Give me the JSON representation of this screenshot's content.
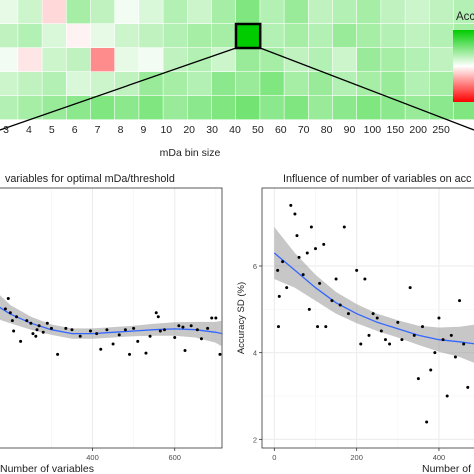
{
  "chart_data": [
    {
      "type": "heatmap",
      "xlabel": "mDa bin size",
      "categories": [
        "3",
        "4",
        "5",
        "6",
        "7",
        "8",
        "9",
        "10",
        "20",
        "30",
        "40",
        "50",
        "60",
        "70",
        "80",
        "90",
        "100",
        "150",
        "200",
        "250"
      ],
      "legend_title": "Acc",
      "highlighted_category": "40",
      "colors": {
        "high": "#00cc00",
        "mid": "#ffffff",
        "low": "#ff0000"
      },
      "values": [
        [
          0.1,
          0.2,
          -0.15,
          0.35,
          0.25,
          0.05,
          0.15,
          0.3,
          0.2,
          0.35,
          0.5,
          0.3,
          0.4,
          0.25,
          0.3,
          0.35,
          0.25,
          0.2,
          0.25,
          0.3
        ],
        [
          0.25,
          0.3,
          0.15,
          -0.05,
          0.1,
          0.2,
          0.25,
          0.3,
          0.35,
          0.35,
          1.0,
          0.3,
          0.35,
          0.3,
          0.4,
          0.35,
          0.3,
          0.25,
          0.3,
          0.35
        ],
        [
          0.05,
          -0.1,
          0.2,
          0.25,
          -0.45,
          0.1,
          0.05,
          0.25,
          0.3,
          0.2,
          0.4,
          0.35,
          0.25,
          0.3,
          0.2,
          0.4,
          0.35,
          0.3,
          0.25,
          0.35
        ],
        [
          0.2,
          0.25,
          0.3,
          0.15,
          0.2,
          0.25,
          0.4,
          0.35,
          0.3,
          0.45,
          0.4,
          0.5,
          0.35,
          0.4,
          0.3,
          0.35,
          0.4,
          0.3,
          0.35,
          0.4
        ],
        [
          0.3,
          0.35,
          0.4,
          0.45,
          0.5,
          0.45,
          0.5,
          0.4,
          0.45,
          0.5,
          0.55,
          0.45,
          0.5,
          0.4,
          0.45,
          0.5,
          0.45,
          0.4,
          0.45,
          0.5
        ]
      ]
    },
    {
      "type": "scatter",
      "title": "variables for optimal mDa/threshold",
      "xlabel": "Number of variables",
      "ylabel": "",
      "xticks": [
        400,
        600
      ],
      "xlim": [
        170,
        715
      ],
      "ylim": [
        0.0,
        1.0
      ],
      "grid": true,
      "points": [
        {
          "x": 188,
          "y": 0.535
        },
        {
          "x": 195,
          "y": 0.575
        },
        {
          "x": 200,
          "y": 0.52
        },
        {
          "x": 205,
          "y": 0.49
        },
        {
          "x": 208,
          "y": 0.45
        },
        {
          "x": 215,
          "y": 0.505
        },
        {
          "x": 225,
          "y": 0.41
        },
        {
          "x": 240,
          "y": 0.49
        },
        {
          "x": 250,
          "y": 0.48
        },
        {
          "x": 255,
          "y": 0.44
        },
        {
          "x": 262,
          "y": 0.43
        },
        {
          "x": 265,
          "y": 0.455
        },
        {
          "x": 270,
          "y": 0.47
        },
        {
          "x": 280,
          "y": 0.445
        },
        {
          "x": 290,
          "y": 0.48
        },
        {
          "x": 300,
          "y": 0.46
        },
        {
          "x": 315,
          "y": 0.36
        },
        {
          "x": 335,
          "y": 0.46
        },
        {
          "x": 350,
          "y": 0.455
        },
        {
          "x": 370,
          "y": 0.43
        },
        {
          "x": 395,
          "y": 0.45
        },
        {
          "x": 410,
          "y": 0.44
        },
        {
          "x": 420,
          "y": 0.38
        },
        {
          "x": 435,
          "y": 0.455
        },
        {
          "x": 450,
          "y": 0.4
        },
        {
          "x": 465,
          "y": 0.435
        },
        {
          "x": 480,
          "y": 0.455
        },
        {
          "x": 490,
          "y": 0.36
        },
        {
          "x": 500,
          "y": 0.46
        },
        {
          "x": 510,
          "y": 0.41
        },
        {
          "x": 530,
          "y": 0.365
        },
        {
          "x": 540,
          "y": 0.43
        },
        {
          "x": 555,
          "y": 0.52
        },
        {
          "x": 560,
          "y": 0.505
        },
        {
          "x": 565,
          "y": 0.45
        },
        {
          "x": 575,
          "y": 0.455
        },
        {
          "x": 600,
          "y": 0.425
        },
        {
          "x": 610,
          "y": 0.47
        },
        {
          "x": 620,
          "y": 0.465
        },
        {
          "x": 625,
          "y": 0.375
        },
        {
          "x": 640,
          "y": 0.47
        },
        {
          "x": 655,
          "y": 0.455
        },
        {
          "x": 665,
          "y": 0.42
        },
        {
          "x": 680,
          "y": 0.46
        },
        {
          "x": 690,
          "y": 0.5
        },
        {
          "x": 700,
          "y": 0.5
        },
        {
          "x": 710,
          "y": 0.36
        }
      ],
      "smooth": {
        "x": [
          170,
          200,
          250,
          300,
          350,
          400,
          450,
          500,
          550,
          600,
          650,
          700,
          715
        ],
        "y": [
          0.545,
          0.515,
          0.48,
          0.455,
          0.44,
          0.44,
          0.445,
          0.45,
          0.455,
          0.458,
          0.455,
          0.445,
          0.44
        ],
        "lower": [
          0.495,
          0.48,
          0.455,
          0.435,
          0.42,
          0.42,
          0.425,
          0.43,
          0.432,
          0.432,
          0.425,
          0.405,
          0.39
        ],
        "upper": [
          0.595,
          0.55,
          0.505,
          0.475,
          0.46,
          0.46,
          0.465,
          0.47,
          0.478,
          0.484,
          0.485,
          0.485,
          0.49
        ]
      }
    },
    {
      "type": "scatter",
      "title": "Influence of number of variables on acc",
      "xlabel": "Number of",
      "ylabel": "Accuracy SD (%)",
      "xticks": [
        0,
        200,
        400
      ],
      "yticks": [
        2,
        4,
        6
      ],
      "xlim": [
        -30,
        490
      ],
      "ylim": [
        1.8,
        7.8
      ],
      "grid": true,
      "points": [
        {
          "x": 8,
          "y": 5.9
        },
        {
          "x": 10,
          "y": 4.6
        },
        {
          "x": 12,
          "y": 5.3
        },
        {
          "x": 20,
          "y": 6.1
        },
        {
          "x": 30,
          "y": 5.5
        },
        {
          "x": 40,
          "y": 7.4
        },
        {
          "x": 50,
          "y": 7.2
        },
        {
          "x": 55,
          "y": 6.7
        },
        {
          "x": 60,
          "y": 6.2
        },
        {
          "x": 70,
          "y": 5.8
        },
        {
          "x": 80,
          "y": 6.3
        },
        {
          "x": 85,
          "y": 5.0
        },
        {
          "x": 90,
          "y": 6.9
        },
        {
          "x": 100,
          "y": 6.4
        },
        {
          "x": 105,
          "y": 4.6
        },
        {
          "x": 110,
          "y": 5.6
        },
        {
          "x": 120,
          "y": 6.5
        },
        {
          "x": 125,
          "y": 4.6
        },
        {
          "x": 140,
          "y": 5.2
        },
        {
          "x": 150,
          "y": 5.7
        },
        {
          "x": 160,
          "y": 5.1
        },
        {
          "x": 170,
          "y": 6.9
        },
        {
          "x": 180,
          "y": 4.9
        },
        {
          "x": 200,
          "y": 5.9
        },
        {
          "x": 210,
          "y": 4.2
        },
        {
          "x": 220,
          "y": 5.7
        },
        {
          "x": 230,
          "y": 4.4
        },
        {
          "x": 240,
          "y": 4.9
        },
        {
          "x": 250,
          "y": 4.8
        },
        {
          "x": 260,
          "y": 4.5
        },
        {
          "x": 270,
          "y": 4.3
        },
        {
          "x": 280,
          "y": 4.2
        },
        {
          "x": 300,
          "y": 4.7
        },
        {
          "x": 310,
          "y": 4.3
        },
        {
          "x": 330,
          "y": 5.5
        },
        {
          "x": 340,
          "y": 4.4
        },
        {
          "x": 350,
          "y": 3.4
        },
        {
          "x": 360,
          "y": 4.6
        },
        {
          "x": 370,
          "y": 2.4
        },
        {
          "x": 380,
          "y": 3.6
        },
        {
          "x": 390,
          "y": 4.0
        },
        {
          "x": 400,
          "y": 4.8
        },
        {
          "x": 410,
          "y": 4.3
        },
        {
          "x": 420,
          "y": 3.0
        },
        {
          "x": 430,
          "y": 4.4
        },
        {
          "x": 440,
          "y": 3.9
        },
        {
          "x": 450,
          "y": 5.2
        },
        {
          "x": 460,
          "y": 4.2
        },
        {
          "x": 470,
          "y": 3.2
        }
      ],
      "smooth": {
        "x": [
          0,
          50,
          100,
          150,
          200,
          250,
          300,
          350,
          400,
          450,
          490
        ],
        "y": [
          6.3,
          5.9,
          5.5,
          5.15,
          4.9,
          4.7,
          4.55,
          4.4,
          4.3,
          4.25,
          4.2
        ],
        "lower": [
          5.7,
          5.5,
          5.2,
          4.9,
          4.68,
          4.5,
          4.35,
          4.18,
          4.02,
          3.9,
          3.75
        ],
        "upper": [
          6.9,
          6.3,
          5.8,
          5.4,
          5.12,
          4.9,
          4.75,
          4.62,
          4.58,
          4.6,
          4.65
        ]
      }
    }
  ]
}
